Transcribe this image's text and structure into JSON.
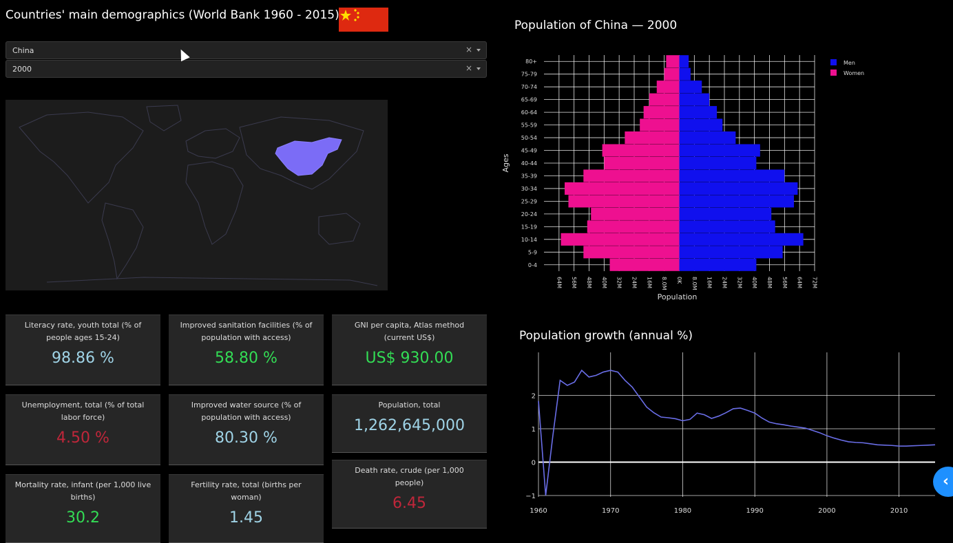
{
  "header": {
    "title": "Countries' main demographics (World Bank 1960 - 2015)"
  },
  "filters": {
    "country": "China",
    "year": "2000",
    "clear_glyph": "×"
  },
  "map": {
    "highlight_color": "#7b6cf6",
    "land_outline": "#3b3b4f"
  },
  "kpis": [
    {
      "label": "Literacy rate, youth total (% of people ages 15-24)",
      "value": "98.86 %",
      "status": "neutral"
    },
    {
      "label": "Improved sanitation facilities (% of population with access)",
      "value": "58.80 %",
      "status": "good"
    },
    {
      "label": "GNI per capita, Atlas method (current US$)",
      "value": "US$ 930.00",
      "status": "good"
    },
    {
      "label": "Unemployment, total (% of total labor force)",
      "value": "4.50 %",
      "status": "bad"
    },
    {
      "label": "Improved water source (% of population with access)",
      "value": "80.30 %",
      "status": "neutral"
    },
    {
      "label": "Population, total",
      "value": "1,262,645,000",
      "status": "neutral"
    },
    {
      "label": "Mortality rate, infant (per 1,000 live births)",
      "value": "30.2",
      "status": "good"
    },
    {
      "label": "Fertility rate, total (births per woman)",
      "value": "1.45",
      "status": "neutral"
    },
    {
      "label": "Death rate, crude (per 1,000 people)",
      "value": "6.45",
      "status": "bad"
    }
  ],
  "chart_data": [
    {
      "type": "bar",
      "orientation": "horizontal",
      "title": "Population of China — 2000",
      "xlabel": "Population",
      "ylabel": "Ages",
      "xlim": [
        -72,
        72
      ],
      "x_tick_labels": [
        "64M",
        "56M",
        "48M",
        "40M",
        "32M",
        "24M",
        "16M",
        "8.0M",
        "0K",
        "8.0M",
        "16M",
        "24M",
        "32M",
        "40M",
        "48M",
        "56M",
        "64M",
        "72M"
      ],
      "categories": [
        "0-4",
        "5-9",
        "10-14",
        "15-19",
        "20-24",
        "25-29",
        "30-34",
        "35-39",
        "40-44",
        "45-49",
        "50-54",
        "55-59",
        "60-64",
        "65-69",
        "70-74",
        "75-79",
        "80+"
      ],
      "series": [
        {
          "name": "Men",
          "color": "#1010ee",
          "values": [
            41,
            55,
            66,
            51,
            49,
            61,
            63,
            56,
            41,
            43,
            30,
            23,
            20,
            16,
            12,
            6,
            5
          ]
        },
        {
          "name": "Women",
          "color": "#ee1090",
          "values": [
            37,
            51,
            63,
            49,
            47,
            59,
            61,
            51,
            40,
            41,
            29,
            21,
            19,
            16,
            12,
            8,
            7
          ]
        }
      ],
      "legend_position": "top-right",
      "grid": true
    },
    {
      "type": "line",
      "title": "Population growth (annual %)",
      "ylim": [
        -1,
        3
      ],
      "y_ticks": [
        -1,
        0,
        1,
        2
      ],
      "x_ticks": [
        1960,
        1970,
        1980,
        1990,
        2000,
        2010
      ],
      "x": [
        1960,
        1961,
        1962,
        1963,
        1964,
        1965,
        1966,
        1967,
        1968,
        1969,
        1970,
        1971,
        1972,
        1973,
        1974,
        1975,
        1976,
        1977,
        1978,
        1979,
        1980,
        1981,
        1982,
        1983,
        1984,
        1985,
        1986,
        1987,
        1988,
        1989,
        1990,
        1991,
        1992,
        1993,
        1994,
        1995,
        1996,
        1997,
        1998,
        1999,
        2000,
        2001,
        2002,
        2003,
        2004,
        2005,
        2006,
        2007,
        2008,
        2009,
        2010,
        2011,
        2012,
        2013,
        2014,
        2015
      ],
      "y": [
        1.83,
        -1.0,
        0.8,
        2.45,
        2.3,
        2.4,
        2.75,
        2.55,
        2.6,
        2.7,
        2.75,
        2.7,
        2.45,
        2.25,
        1.95,
        1.65,
        1.48,
        1.35,
        1.33,
        1.3,
        1.24,
        1.28,
        1.47,
        1.42,
        1.31,
        1.38,
        1.48,
        1.6,
        1.62,
        1.55,
        1.47,
        1.32,
        1.2,
        1.15,
        1.12,
        1.08,
        1.05,
        1.02,
        0.95,
        0.88,
        0.79,
        0.72,
        0.66,
        0.61,
        0.59,
        0.58,
        0.55,
        0.52,
        0.51,
        0.5,
        0.48,
        0.48,
        0.49,
        0.5,
        0.51,
        0.52
      ],
      "line_color": "#6a6ee8",
      "grid": true
    }
  ],
  "side_button": {
    "glyph": "‹"
  }
}
